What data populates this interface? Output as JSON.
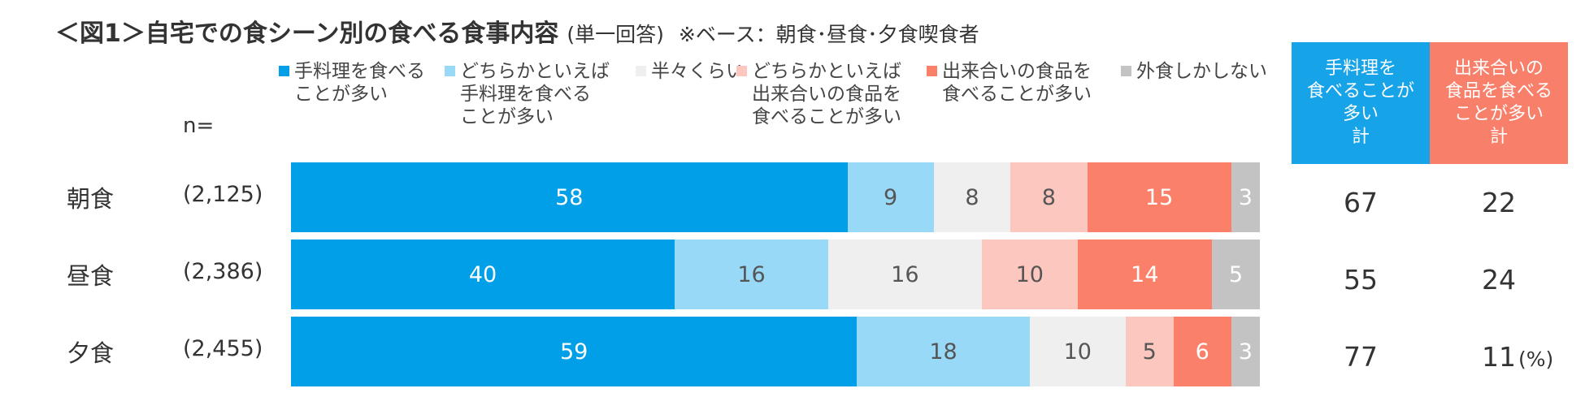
{
  "title": {
    "main": "＜図1＞自宅での食シーン別の食べる食事内容",
    "sub": "(単一回答)",
    "base": "※ベース：朝食･昼食･夕食喫食者"
  },
  "n_label": "n=",
  "pct_label": "(%)",
  "summary_headers": {
    "handmade": "手料理を\n食べることが\n多い\n計",
    "ready": "出来合いの\n食品を食べる\nことが多い\n計"
  },
  "colors": {
    "handmade": "#009FE8",
    "lean_handmade": "#99D9F8",
    "half": "#EFEFEF",
    "lean_ready": "#FCC7BE",
    "ready": "#FA8069",
    "eat_out": "#C3C3C3",
    "header_handmade": "#16A3E8",
    "header_ready": "#F8806B"
  },
  "chart_data": {
    "type": "bar",
    "orientation": "horizontal",
    "stacked": true,
    "unit": "%",
    "categories": [
      "朝食",
      "昼食",
      "夕食"
    ],
    "n": [
      "(2,125)",
      "(2,386)",
      "(2,455)"
    ],
    "series": [
      {
        "name": "手料理を食べる\nことが多い",
        "key": "handmade",
        "values": [
          58,
          40,
          59
        ]
      },
      {
        "name": "どちらかといえば\n手料理を食べる\nことが多い",
        "key": "lean_handmade",
        "values": [
          9,
          16,
          18
        ]
      },
      {
        "name": "半々くらい",
        "key": "half",
        "values": [
          8,
          16,
          10
        ]
      },
      {
        "name": "どちらかといえば\n出来合いの食品を\n食べることが多い",
        "key": "lean_ready",
        "values": [
          8,
          10,
          5
        ]
      },
      {
        "name": "出来合いの食品を\n食べることが多い",
        "key": "ready",
        "values": [
          15,
          14,
          6
        ]
      },
      {
        "name": "外食しかしない",
        "key": "eat_out",
        "values": [
          3,
          5,
          3
        ]
      }
    ],
    "totals": {
      "handmade": [
        67,
        55,
        77
      ],
      "ready": [
        22,
        24,
        11
      ]
    },
    "legend_position": "top"
  }
}
